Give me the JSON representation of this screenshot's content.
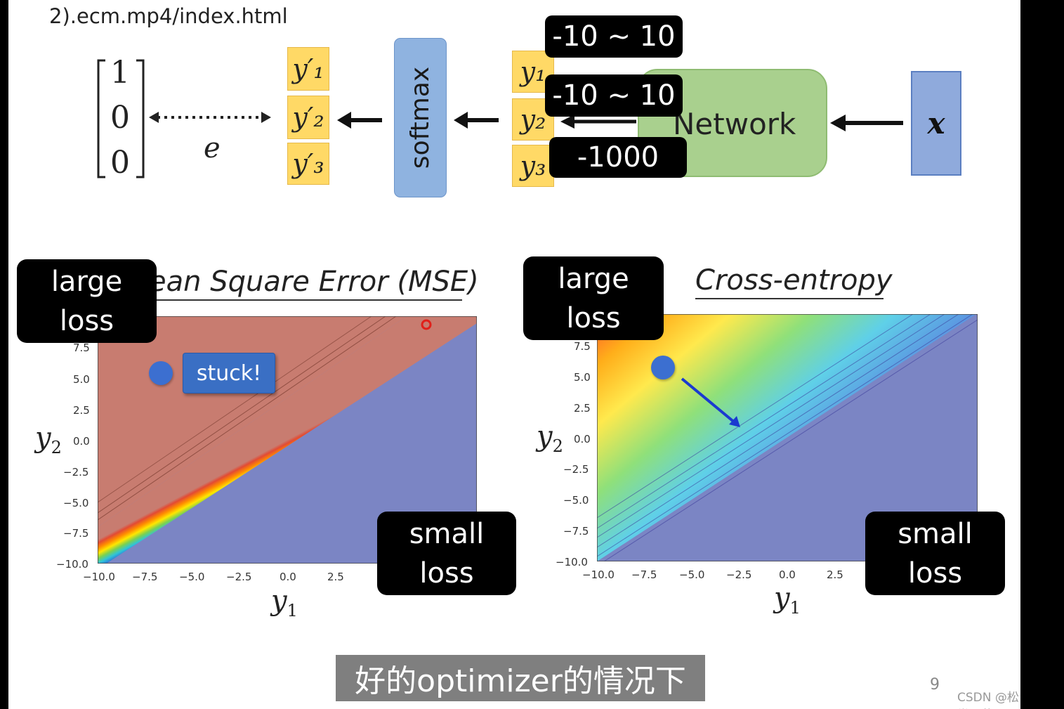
{
  "header": {
    "url": "2).ecm.mp4/index.html"
  },
  "diagram": {
    "target": [
      "1",
      "0",
      "0"
    ],
    "error_symbol": "e",
    "yprime": [
      "y′₁",
      "y′₂",
      "y′₃"
    ],
    "softmax_label": "softmax",
    "y": [
      "y₁",
      "y₂",
      "y₃"
    ],
    "network_label": "Network",
    "input_label": "x",
    "ranges": [
      "-10 ~ 10",
      "-10 ~ 10",
      "-1000"
    ]
  },
  "charts": [
    {
      "title": "ean Square Error (MSE)",
      "yticks": [
        "7.5",
        "5.0",
        "2.5",
        "0.0",
        "−2.5",
        "−5.0",
        "−7.5",
        "−10.0"
      ],
      "xticks": [
        "−10.0",
        "−7.5",
        "−5.0",
        "−2.5",
        "0.0",
        "2.5"
      ],
      "ylabel_var": "y",
      "ylabel_sub": "2",
      "xlabel_var": "y",
      "xlabel_sub": "1",
      "callout": "stuck!",
      "large_loss": [
        "large",
        "loss"
      ],
      "small_loss": [
        "small",
        "loss"
      ]
    },
    {
      "title": "Cross-entropy",
      "yticks": [
        "7.5",
        "5.0",
        "2.5",
        "0.0",
        "−2.5",
        "−5.0",
        "−7.5",
        "−10.0"
      ],
      "xticks": [
        "−10.0",
        "−7.5",
        "−5.0",
        "−2.5",
        "0.0",
        "2.5"
      ],
      "ylabel_var": "y",
      "ylabel_sub": "2",
      "xlabel_var": "y",
      "xlabel_sub": "1",
      "large_loss": [
        "large",
        "loss"
      ],
      "small_loss": [
        "small",
        "loss"
      ]
    }
  ],
  "footer": {
    "subtitle": "好的optimizer的情况下",
    "page_number": "9",
    "watermark": "CSDN @松堂飞萤"
  }
}
